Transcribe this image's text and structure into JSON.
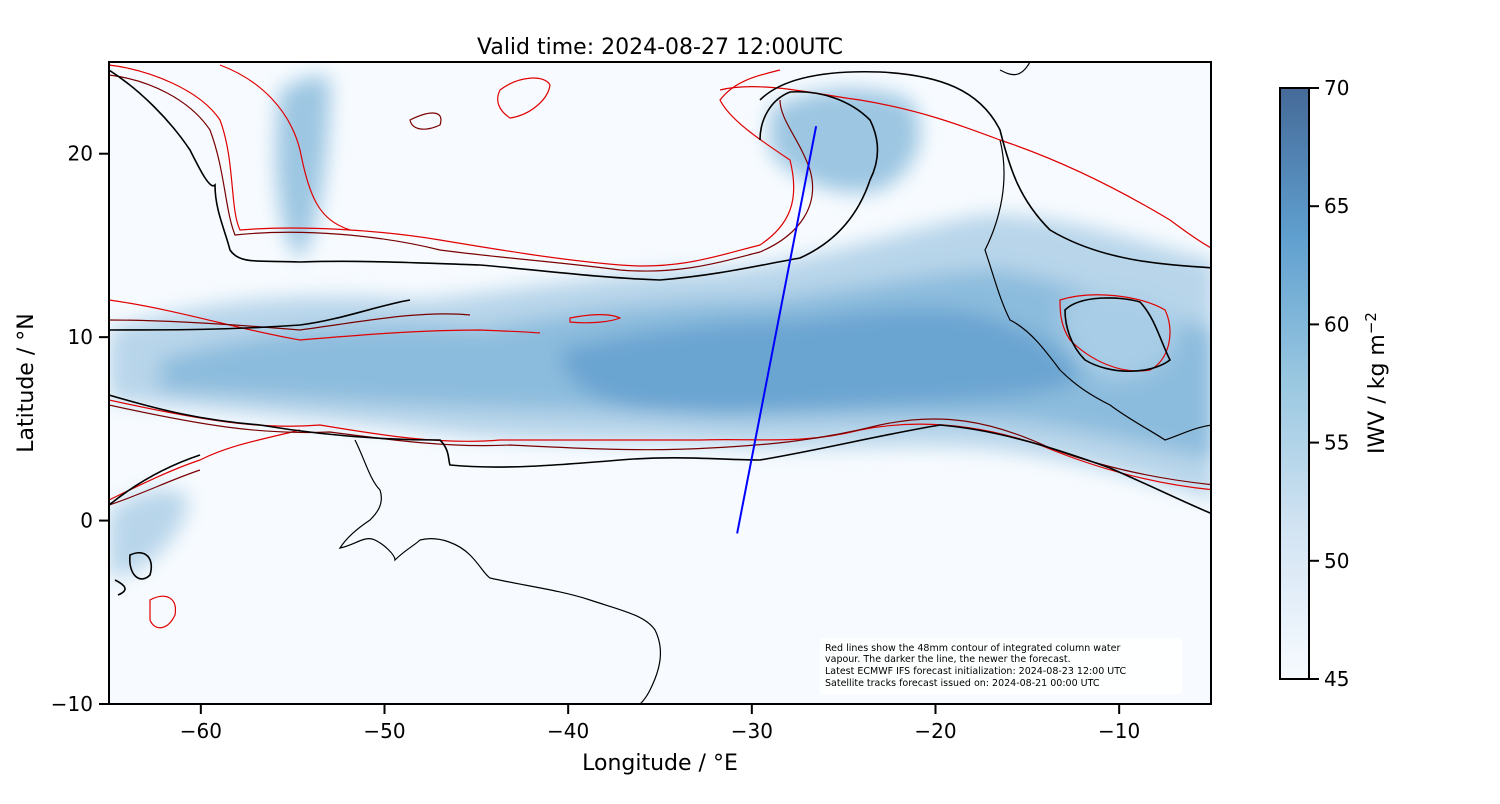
{
  "title": "Valid time: 2024-08-27 12:00UTC",
  "map": {
    "xlabel": "Longitude / °E",
    "ylabel": "Latitude / °N",
    "xlim": [
      -65,
      -5
    ],
    "ylim": [
      -10,
      25
    ],
    "xticks": [
      -60,
      -50,
      -40,
      -30,
      -20,
      -10
    ],
    "yticks": [
      -10,
      0,
      10,
      20
    ],
    "xtick_labels": [
      "−60",
      "−50",
      "−40",
      "−30",
      "−20",
      "−10"
    ],
    "ytick_labels": [
      "−10",
      "0",
      "10",
      "20"
    ]
  },
  "colorbar": {
    "label": "IWV / kg m",
    "label_superscript": "−2",
    "min": 45,
    "max": 70,
    "ticks": [
      "45",
      "50",
      "55",
      "60",
      "65",
      "70"
    ],
    "color_low": "#f7fbff",
    "color_high": "#4a6fa0"
  },
  "satellite_track": {
    "color": "#0000ff",
    "start": {
      "lon": -30.8,
      "lat": -0.7
    },
    "end": {
      "lon": -26.5,
      "lat": 21.5
    }
  },
  "contour_colors": [
    "#000000",
    "#3a0000",
    "#7a0000",
    "#e00000"
  ],
  "note": {
    "line1": "Red lines show the 48mm contour of integrated column water",
    "line2": "vapour. The darker the line, the newer the forecast.",
    "line3": "Latest ECMWF IFS forecast initialization: 2024-08-23 12:00 UTC",
    "line4": "Satellite tracks forecast issued on: 2024-08-21 00:00 UTC"
  }
}
